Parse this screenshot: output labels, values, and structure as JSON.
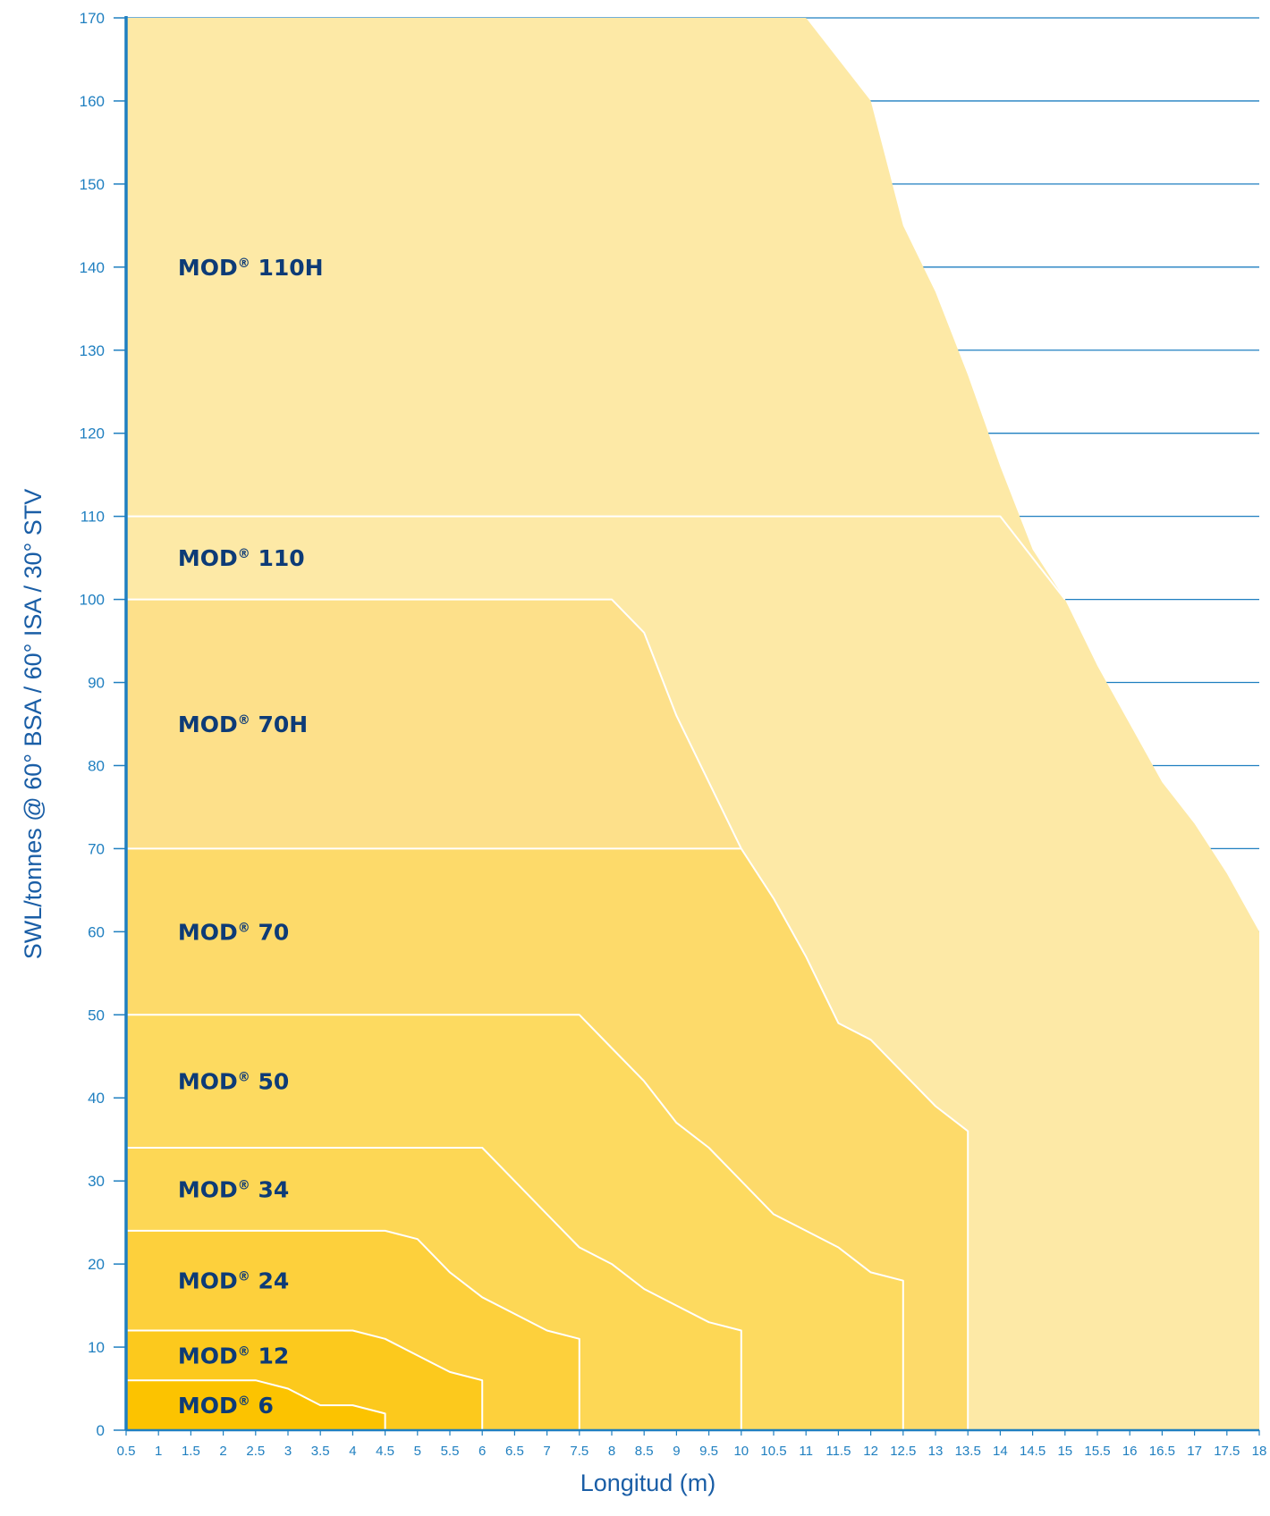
{
  "colors": {
    "axis": "#1f7fc0",
    "grid": "#1f7fc0",
    "axis_title": "#1a5ea6",
    "label": "#0d3b77",
    "boundary": "#ffffff"
  },
  "chart_data": {
    "type": "area",
    "title": "",
    "xlabel": "Longitud (m)",
    "ylabel": "SWL/tonnes @ 60° BSA / 60° ISA / 30° STV",
    "xlim": [
      0.5,
      18
    ],
    "ylim": [
      0,
      170
    ],
    "x_ticks": [
      0.5,
      1,
      1.5,
      2,
      2.5,
      3,
      3.5,
      4,
      4.5,
      5,
      5.5,
      6,
      6.5,
      7,
      7.5,
      8,
      8.5,
      9,
      9.5,
      10,
      10.5,
      11,
      11.5,
      12,
      12.5,
      13,
      13.5,
      14,
      14.5,
      15,
      15.5,
      16,
      16.5,
      17,
      17.5,
      18
    ],
    "y_ticks": [
      0,
      10,
      20,
      30,
      40,
      50,
      60,
      70,
      80,
      90,
      100,
      110,
      120,
      130,
      140,
      150,
      160,
      170
    ],
    "grid": "horizontal lines, outside shaded area",
    "series": [
      {
        "name": "MOD 110H",
        "label_main": "MOD",
        "label_reg": "®",
        "label_tail": " 110H",
        "label_at": [
          1.3,
          140
        ],
        "color": "#fde9a6",
        "points": [
          [
            0.5,
            170
          ],
          [
            11,
            170
          ],
          [
            12,
            160
          ],
          [
            12.5,
            145
          ],
          [
            13,
            137
          ],
          [
            13.5,
            127
          ],
          [
            14,
            116
          ],
          [
            14.5,
            106
          ],
          [
            15,
            100
          ],
          [
            15.5,
            92
          ],
          [
            16,
            85
          ],
          [
            16.5,
            78
          ],
          [
            17,
            73
          ],
          [
            17.5,
            67
          ],
          [
            18,
            60
          ]
        ]
      },
      {
        "name": "MOD 110",
        "label_main": "MOD",
        "label_reg": "®",
        "label_tail": " 110",
        "label_at": [
          1.3,
          105
        ],
        "color": "#fde9a6",
        "points": [
          [
            0.5,
            110
          ],
          [
            14,
            110
          ],
          [
            14.5,
            105
          ],
          [
            15,
            100
          ]
        ]
      },
      {
        "name": "MOD 70H",
        "label_main": "MOD",
        "label_reg": "®",
        "label_tail": " 70H",
        "label_at": [
          1.3,
          85
        ],
        "color": "#fde08a",
        "points": [
          [
            0.5,
            100
          ],
          [
            8,
            100
          ],
          [
            8.5,
            96
          ],
          [
            9,
            86
          ],
          [
            9.5,
            78
          ],
          [
            10,
            70
          ]
        ]
      },
      {
        "name": "MOD 70",
        "label_main": "MOD",
        "label_reg": "®",
        "label_tail": " 70",
        "label_at": [
          1.3,
          60
        ],
        "color": "#fdda6a",
        "points": [
          [
            0.5,
            70
          ],
          [
            10,
            70
          ],
          [
            10.5,
            64
          ],
          [
            11,
            57
          ],
          [
            11.5,
            49
          ],
          [
            12,
            47
          ],
          [
            12.5,
            43
          ],
          [
            13,
            39
          ],
          [
            13.5,
            36
          ],
          [
            13.5,
            0
          ]
        ]
      },
      {
        "name": "MOD 50",
        "label_main": "MOD",
        "label_reg": "®",
        "label_tail": " 50",
        "label_at": [
          1.3,
          42
        ],
        "color": "#fdda60",
        "points": [
          [
            0.5,
            50
          ],
          [
            7.5,
            50
          ],
          [
            8,
            46
          ],
          [
            8.5,
            42
          ],
          [
            9,
            37
          ],
          [
            9.5,
            34
          ],
          [
            10,
            30
          ],
          [
            10.5,
            26
          ],
          [
            11,
            24
          ],
          [
            11.5,
            22
          ],
          [
            12,
            19
          ],
          [
            12.5,
            18
          ],
          [
            12.5,
            0
          ]
        ]
      },
      {
        "name": "MOD 34",
        "label_main": "MOD",
        "label_reg": "®",
        "label_tail": " 34",
        "label_at": [
          1.3,
          29
        ],
        "color": "#fdd755",
        "points": [
          [
            0.5,
            34
          ],
          [
            6,
            34
          ],
          [
            6.5,
            30
          ],
          [
            7,
            26
          ],
          [
            7.5,
            22
          ],
          [
            8,
            20
          ],
          [
            8.5,
            17
          ],
          [
            9,
            15
          ],
          [
            9.5,
            13
          ],
          [
            10,
            12
          ],
          [
            10,
            0
          ]
        ]
      },
      {
        "name": "MOD 24",
        "label_main": "MOD",
        "label_reg": "®",
        "label_tail": " 24",
        "label_at": [
          1.3,
          18
        ],
        "color": "#fdd03c",
        "points": [
          [
            0.5,
            24
          ],
          [
            4.5,
            24
          ],
          [
            5,
            23
          ],
          [
            5.5,
            19
          ],
          [
            6,
            16
          ],
          [
            6.5,
            14
          ],
          [
            7,
            12
          ],
          [
            7.5,
            11
          ],
          [
            7.5,
            0
          ]
        ]
      },
      {
        "name": "MOD 12",
        "label_main": "MOD",
        "label_reg": "®",
        "label_tail": " 12",
        "label_at": [
          1.3,
          9
        ],
        "color": "#fcc91d",
        "points": [
          [
            0.5,
            12
          ],
          [
            4,
            12
          ],
          [
            4.5,
            11
          ],
          [
            5,
            9
          ],
          [
            5.5,
            7
          ],
          [
            6,
            6
          ],
          [
            6,
            0
          ]
        ]
      },
      {
        "name": "MOD 6",
        "label_main": "MOD",
        "label_reg": "®",
        "label_tail": " 6",
        "label_at": [
          1.3,
          3
        ],
        "color": "#fcc300",
        "points": [
          [
            0.5,
            6
          ],
          [
            2.5,
            6
          ],
          [
            3,
            5
          ],
          [
            3.5,
            3
          ],
          [
            4,
            3
          ],
          [
            4.5,
            2
          ],
          [
            4.5,
            0
          ]
        ]
      }
    ]
  }
}
